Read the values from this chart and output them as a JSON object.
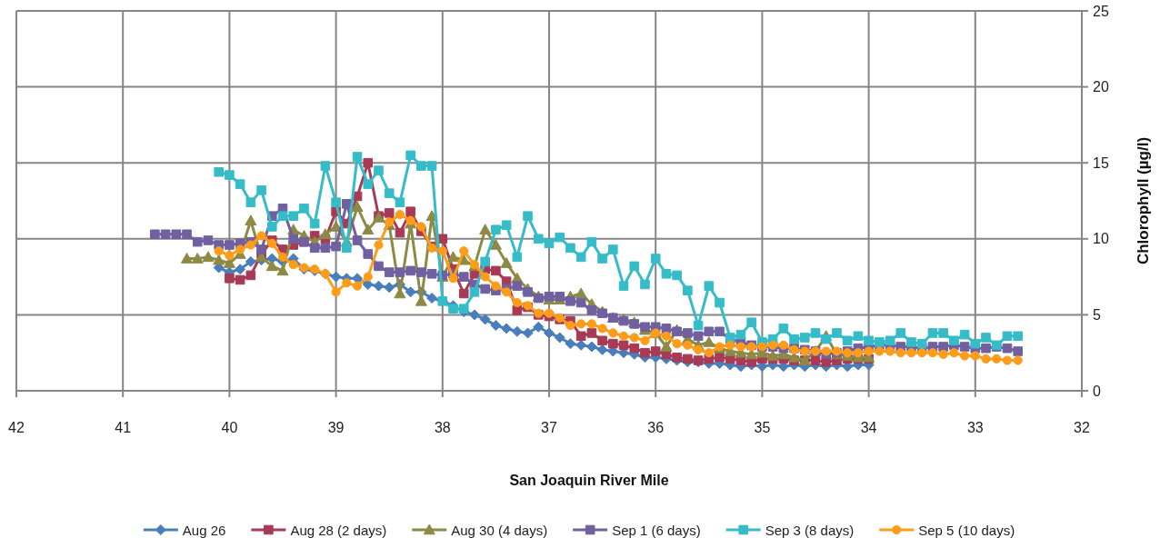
{
  "chart_data": {
    "type": "line",
    "xlabel": "San Joaquin River Mile",
    "ylabel": "Chlorophyll (µg/l)",
    "xlim": [
      42,
      32
    ],
    "xticks": [
      42,
      41,
      40,
      39,
      38,
      37,
      36,
      35,
      34,
      33,
      32
    ],
    "ylim": [
      0,
      25
    ],
    "yticks": [
      0,
      5,
      10,
      15,
      20,
      25
    ],
    "grid": true,
    "legend": "bottom",
    "line_style": "solid",
    "series": [
      {
        "name": "Aug 26",
        "color": "#4a7ebb",
        "marker": "diamond",
        "x": [
          40.1,
          40,
          39.9,
          39.8,
          39.7,
          39.6,
          39.5,
          39.4,
          39.3,
          39.2,
          39.1,
          39,
          38.9,
          38.8,
          38.7,
          38.6,
          38.5,
          38.4,
          38.3,
          38.2,
          38.1,
          38,
          37.9,
          37.8,
          37.7,
          37.6,
          37.5,
          37.4,
          37.3,
          37.2,
          37.1,
          37,
          36.9,
          36.8,
          36.7,
          36.6,
          36.5,
          36.4,
          36.3,
          36.2,
          36.1,
          36,
          35.9,
          35.8,
          35.7,
          35.6,
          35.5,
          35.4,
          35.3,
          35.2,
          35.1,
          35,
          34.9,
          34.8,
          34.7,
          34.6,
          34.5,
          34.4,
          34.3,
          34.2,
          34.1,
          34
        ],
        "values": [
          8.1,
          7.8,
          8.0,
          8.5,
          8.6,
          8.7,
          8.5,
          8.7,
          8.0,
          7.9,
          7.7,
          7.5,
          7.4,
          7.4,
          7.0,
          6.9,
          6.8,
          7.0,
          6.5,
          6.5,
          6.1,
          5.9,
          5.6,
          5.2,
          5.0,
          4.7,
          4.3,
          4.1,
          3.9,
          3.8,
          4.2,
          3.8,
          3.5,
          3.1,
          3.0,
          2.9,
          2.7,
          2.6,
          2.5,
          2.4,
          2.2,
          2.2,
          2.1,
          2.0,
          1.9,
          1.9,
          1.8,
          1.8,
          1.7,
          1.6,
          1.7,
          1.6,
          1.7,
          1.6,
          1.7,
          1.6,
          1.7,
          1.6,
          1.7,
          1.6,
          1.7,
          1.7
        ]
      },
      {
        "name": "Aug 28 (2 days)",
        "color": "#a83a56",
        "marker": "square",
        "x": [
          40,
          39.9,
          39.8,
          39.7,
          39.6,
          39.5,
          39.4,
          39.3,
          39.2,
          39.1,
          39,
          38.9,
          38.8,
          38.7,
          38.6,
          38.5,
          38.4,
          38.3,
          38.2,
          38.1,
          38,
          37.9,
          37.8,
          37.7,
          37.6,
          37.5,
          37.4,
          37.3,
          37.2,
          37.1,
          37,
          36.9,
          36.8,
          36.7,
          36.6,
          36.5,
          36.4,
          36.3,
          36.2,
          36.1,
          36,
          35.9,
          35.8,
          35.7,
          35.6,
          35.5,
          35.4,
          35.3,
          35.2,
          35.1,
          35,
          34.9,
          34.8,
          34.7,
          34.6,
          34.5,
          34.4,
          34.3,
          34.2,
          34.1,
          34
        ],
        "values": [
          7.4,
          7.3,
          7.6,
          9.0,
          9.9,
          9.3,
          9.6,
          9.8,
          10.2,
          10.0,
          11.8,
          11.0,
          12.8,
          15.0,
          11.5,
          11.7,
          10.4,
          11.8,
          10.5,
          9.5,
          10.0,
          8.0,
          6.4,
          7.7,
          8.0,
          7.9,
          7.2,
          5.3,
          5.5,
          5.0,
          4.9,
          4.7,
          4.6,
          3.6,
          3.8,
          3.3,
          3.1,
          3.0,
          2.8,
          2.5,
          2.6,
          2.4,
          2.2,
          2.1,
          2.0,
          2.1,
          2.2,
          2.1,
          2.0,
          1.9,
          2.1,
          2.1,
          2.1,
          2.0,
          2.0,
          2.0,
          1.9,
          2.0,
          2.1,
          2.1,
          2.1
        ]
      },
      {
        "name": "Aug 30 (4 days)",
        "color": "#8c8a45",
        "marker": "triangle",
        "x": [
          40.4,
          40.3,
          40.2,
          40.1,
          40,
          39.9,
          39.8,
          39.7,
          39.6,
          39.5,
          39.4,
          39.3,
          39.2,
          39.1,
          39,
          38.9,
          38.8,
          38.7,
          38.6,
          38.5,
          38.4,
          38.3,
          38.2,
          38.1,
          38,
          37.9,
          37.8,
          37.7,
          37.6,
          37.5,
          37.4,
          37.3,
          37.2,
          37.1,
          37,
          36.9,
          36.8,
          36.7,
          36.6,
          36.5,
          36.4,
          36.3,
          36.2,
          36.1,
          36,
          35.9,
          35.8,
          35.7,
          35.6,
          35.5,
          35.4,
          35.3,
          35.2,
          35.1,
          35,
          34.9,
          34.8,
          34.7,
          34.6,
          34.5,
          34.4,
          34.3,
          34.2,
          34.1,
          34
        ],
        "values": [
          8.7,
          8.7,
          8.8,
          8.6,
          8.4,
          9.0,
          11.2,
          8.8,
          8.2,
          7.9,
          10.6,
          10.2,
          9.8,
          10.3,
          10.8,
          9.8,
          12.1,
          10.6,
          11.4,
          10.9,
          6.4,
          11.0,
          5.9,
          11.5,
          7.5,
          8.8,
          8.6,
          8.2,
          10.6,
          9.6,
          8.4,
          7.4,
          6.7,
          6.2,
          6.0,
          6.0,
          6.2,
          6.4,
          5.7,
          5.2,
          4.8,
          4.7,
          4.5,
          4.0,
          3.8,
          2.9,
          4.0,
          3.4,
          3.0,
          3.2,
          2.8,
          2.6,
          2.5,
          2.4,
          2.5,
          2.3,
          2.4,
          2.2,
          2.0,
          2.6,
          3.6,
          2.4,
          2.3,
          2.2,
          2.2
        ]
      },
      {
        "name": "Sep 1 (6 days)",
        "color": "#7060a0",
        "marker": "square",
        "x": [
          40.7,
          40.6,
          40.5,
          40.4,
          40.3,
          40.2,
          40.1,
          40,
          39.9,
          39.8,
          39.7,
          39.6,
          39.5,
          39.4,
          39.3,
          39.2,
          39.1,
          39,
          38.9,
          38.8,
          38.7,
          38.6,
          38.5,
          38.4,
          38.3,
          38.2,
          38.1,
          38,
          37.9,
          37.8,
          37.7,
          37.6,
          37.5,
          37.4,
          37.3,
          37.2,
          37.1,
          37,
          36.9,
          36.8,
          36.7,
          36.6,
          36.5,
          36.4,
          36.3,
          36.2,
          36.1,
          36,
          35.9,
          35.8,
          35.7,
          35.6,
          35.5,
          35.4,
          35.3,
          35.2,
          35.1,
          35,
          34.9,
          34.8,
          34.7,
          34.6,
          34.5,
          34.4,
          34.3,
          34.2,
          34.1,
          34,
          33.9,
          33.8,
          33.7,
          33.6,
          33.5,
          33.4,
          33.3,
          33.2,
          33.1,
          33,
          32.9,
          32.8,
          32.7,
          32.6
        ],
        "values": [
          10.3,
          10.3,
          10.3,
          10.3,
          9.8,
          9.9,
          9.6,
          9.6,
          9.7,
          9.8,
          9.3,
          11.5,
          12.0,
          10.0,
          9.8,
          9.4,
          9.4,
          9.5,
          12.3,
          9.9,
          9.0,
          8.2,
          7.8,
          7.8,
          7.9,
          7.8,
          7.7,
          7.6,
          7.7,
          7.5,
          7.0,
          6.7,
          6.6,
          6.7,
          6.9,
          6.5,
          6.1,
          6.2,
          6.2,
          5.9,
          5.8,
          5.3,
          5.1,
          4.8,
          4.6,
          4.4,
          4.2,
          4.2,
          4.1,
          3.9,
          3.8,
          3.6,
          3.9,
          3.9,
          3.4,
          3.2,
          3.0,
          2.9,
          2.9,
          2.8,
          2.8,
          2.7,
          2.6,
          2.4,
          2.5,
          2.6,
          2.8,
          2.9,
          3.0,
          3.0,
          2.9,
          2.9,
          2.8,
          2.9,
          2.9,
          3.0,
          2.9,
          2.8,
          2.8,
          2.9,
          2.8,
          2.6
        ]
      },
      {
        "name": "Sep 3 (8 days)",
        "color": "#36bcc8",
        "marker": "square",
        "x": [
          40.1,
          40,
          39.9,
          39.8,
          39.7,
          39.6,
          39.5,
          39.4,
          39.3,
          39.2,
          39.1,
          39,
          38.9,
          38.8,
          38.7,
          38.6,
          38.5,
          38.4,
          38.3,
          38.2,
          38.1,
          38,
          37.9,
          37.8,
          37.7,
          37.6,
          37.5,
          37.4,
          37.3,
          37.2,
          37.1,
          37,
          36.9,
          36.8,
          36.7,
          36.6,
          36.5,
          36.4,
          36.3,
          36.2,
          36.1,
          36,
          35.9,
          35.8,
          35.7,
          35.6,
          35.5,
          35.4,
          35.3,
          35.2,
          35.1,
          35,
          34.9,
          34.8,
          34.7,
          34.6,
          34.5,
          34.4,
          34.3,
          34.2,
          34.1,
          34,
          33.9,
          33.8,
          33.7,
          33.6,
          33.5,
          33.4,
          33.3,
          33.2,
          33.1,
          33,
          32.9,
          32.8,
          32.7,
          32.6
        ],
        "values": [
          14.4,
          14.2,
          13.6,
          12.4,
          13.2,
          10.8,
          11.5,
          11.5,
          12.0,
          11.0,
          14.8,
          12.4,
          9.4,
          15.4,
          13.6,
          14.5,
          13.0,
          12.4,
          15.5,
          14.8,
          14.8,
          5.9,
          5.4,
          5.4,
          6.5,
          8.5,
          10.6,
          10.9,
          8.8,
          11.5,
          10.0,
          9.7,
          10.1,
          9.4,
          8.8,
          9.8,
          8.7,
          9.3,
          6.9,
          8.2,
          7.0,
          8.7,
          7.7,
          7.6,
          6.6,
          4.3,
          6.9,
          5.8,
          3.5,
          3.7,
          4.5,
          3.2,
          3.4,
          4.1,
          3.4,
          3.5,
          3.8,
          3.4,
          3.8,
          3.3,
          3.6,
          3.3,
          3.2,
          3.3,
          3.8,
          3.2,
          3.1,
          3.8,
          3.8,
          3.3,
          3.7,
          3.1,
          3.5,
          3.0,
          3.6,
          3.6
        ]
      },
      {
        "name": "Sep 5 (10 days)",
        "color": "#ff9c1a",
        "marker": "circle",
        "x": [
          40.1,
          40,
          39.9,
          39.8,
          39.7,
          39.6,
          39.5,
          39.4,
          39.3,
          39.2,
          39.1,
          39,
          38.9,
          38.8,
          38.7,
          38.6,
          38.5,
          38.4,
          38.3,
          38.2,
          38.1,
          38,
          37.9,
          37.8,
          37.7,
          37.6,
          37.5,
          37.4,
          37.3,
          37.2,
          37.1,
          37,
          36.9,
          36.8,
          36.7,
          36.6,
          36.5,
          36.4,
          36.3,
          36.2,
          36.1,
          36,
          35.9,
          35.8,
          35.7,
          35.6,
          35.5,
          35.4,
          35.3,
          35.2,
          35.1,
          35,
          34.9,
          34.8,
          34.7,
          34.6,
          34.5,
          34.4,
          34.3,
          34.2,
          34.1,
          34,
          33.9,
          33.8,
          33.7,
          33.6,
          33.5,
          33.4,
          33.3,
          33.2,
          33.1,
          33,
          32.9,
          32.8,
          32.7,
          32.6
        ],
        "values": [
          9.2,
          8.9,
          9.3,
          9.6,
          10.2,
          9.7,
          8.8,
          8.3,
          8.1,
          8.0,
          7.7,
          6.5,
          7.1,
          6.9,
          7.5,
          9.6,
          11.1,
          11.6,
          11.2,
          10.8,
          9.4,
          9.2,
          7.4,
          9.2,
          8.3,
          7.5,
          6.9,
          6.5,
          5.8,
          5.6,
          5.1,
          5.1,
          4.8,
          4.3,
          4.4,
          4.4,
          4.1,
          3.8,
          3.6,
          3.5,
          3.3,
          3.8,
          3.6,
          3.1,
          3.0,
          2.7,
          2.5,
          2.9,
          3.0,
          2.9,
          2.9,
          2.9,
          3.0,
          3.0,
          2.7,
          2.6,
          2.6,
          2.6,
          2.6,
          2.5,
          2.5,
          2.6,
          2.6,
          2.6,
          2.5,
          2.5,
          2.5,
          2.5,
          2.4,
          2.5,
          2.3,
          2.3,
          2.1,
          2.1,
          2.0,
          2.0
        ]
      }
    ]
  }
}
